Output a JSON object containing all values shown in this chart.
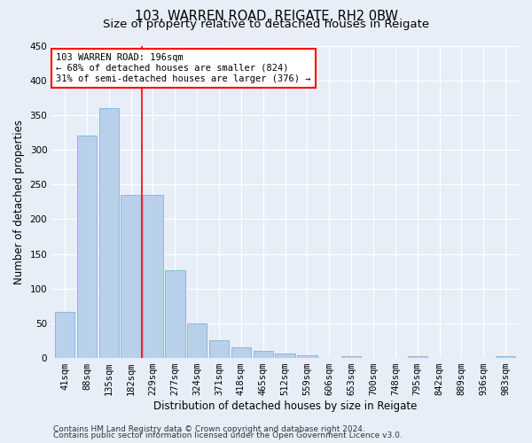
{
  "title1": "103, WARREN ROAD, REIGATE, RH2 0BW",
  "title2": "Size of property relative to detached houses in Reigate",
  "xlabel": "Distribution of detached houses by size in Reigate",
  "ylabel": "Number of detached properties",
  "footer1": "Contains HM Land Registry data © Crown copyright and database right 2024.",
  "footer2": "Contains public sector information licensed under the Open Government Licence v3.0.",
  "bin_labels": [
    "41sqm",
    "88sqm",
    "135sqm",
    "182sqm",
    "229sqm",
    "277sqm",
    "324sqm",
    "371sqm",
    "418sqm",
    "465sqm",
    "512sqm",
    "559sqm",
    "606sqm",
    "653sqm",
    "700sqm",
    "748sqm",
    "795sqm",
    "842sqm",
    "889sqm",
    "936sqm",
    "983sqm"
  ],
  "bar_values": [
    67,
    321,
    360,
    235,
    235,
    127,
    50,
    25,
    15,
    10,
    6,
    4,
    0,
    3,
    0,
    0,
    3,
    0,
    0,
    0,
    3
  ],
  "bar_color": "#b8d0ea",
  "bar_edge_color": "#6aaed6",
  "vline_x": 3.5,
  "vline_color": "red",
  "annotation_text": "103 WARREN ROAD: 196sqm\n← 68% of detached houses are smaller (824)\n31% of semi-detached houses are larger (376) →",
  "annotation_box_color": "white",
  "annotation_box_edge": "red",
  "ylim": [
    0,
    450
  ],
  "yticks": [
    0,
    50,
    100,
    150,
    200,
    250,
    300,
    350,
    400,
    450
  ],
  "background_color": "#e8eef8",
  "grid_color": "#ffffff",
  "title_fontsize": 10.5,
  "subtitle_fontsize": 9.5,
  "axis_label_fontsize": 8.5,
  "tick_fontsize": 7.5,
  "footer_fontsize": 6.5,
  "annotation_fontsize": 7.5
}
